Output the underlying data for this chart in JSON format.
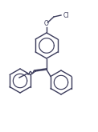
{
  "bg_color": "#ffffff",
  "line_color": "#3a3a5a",
  "line_width": 1.0,
  "figsize": [
    1.22,
    1.65
  ],
  "dpi": 100
}
